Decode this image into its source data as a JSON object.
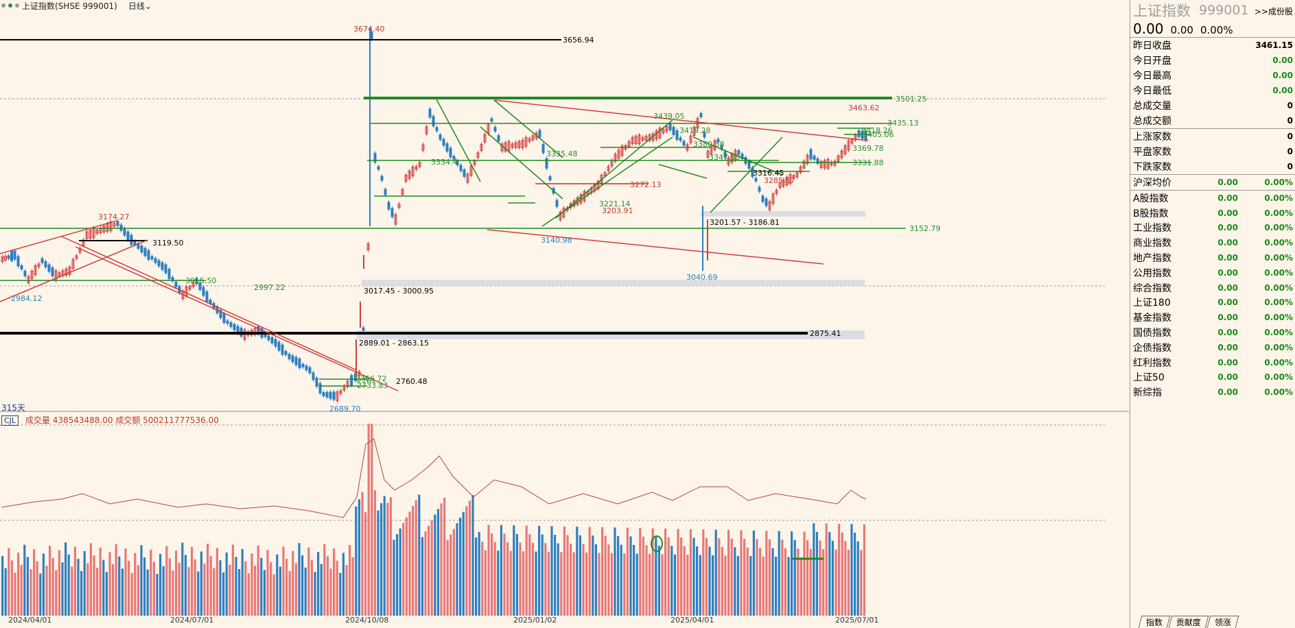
{
  "topbar": {
    "title": "上证指数(SHSE 999001)",
    "period": "日线",
    "dots": [
      "#999999",
      "#2e8b57",
      "#999999"
    ]
  },
  "label_315": "315天",
  "cjl": {
    "box": "CJL",
    "text": "成交量 438543488.00  成交额 500211777536.00"
  },
  "xaxis": [
    "2024/04/01",
    "2024/07/01",
    "2024/10/08",
    "2025/01/02",
    "2025/04/01",
    "2025/07/01"
  ],
  "chart_labels": [
    {
      "t": "3674.40",
      "c": "#c0392b"
    },
    {
      "t": "3656.94",
      "c": "#000"
    },
    {
      "t": "3501.25",
      "c": "#2e8b2e"
    },
    {
      "t": "3463.62",
      "c": "#c0392b"
    },
    {
      "t": "3435.13",
      "c": "#2e8b2e"
    },
    {
      "t": "3418.26",
      "c": "#2e8b2e"
    },
    {
      "t": "3405.06",
      "c": "#2e8b2e"
    },
    {
      "t": "3439.05",
      "c": "#2e8b2e"
    },
    {
      "t": "3419.28",
      "c": "#2e8b2e"
    },
    {
      "t": "3380.58",
      "c": "#2e8b2e"
    },
    {
      "t": "3369.78",
      "c": "#2e8b2e"
    },
    {
      "t": "3347.93",
      "c": "#2e8b2e"
    },
    {
      "t": "3335.48",
      "c": "#2e8b2e"
    },
    {
      "t": "3331.88",
      "c": "#2e8b2e"
    },
    {
      "t": "3334.4",
      "c": "#2e8b2e"
    },
    {
      "t": "3316.45",
      "c": "#000"
    },
    {
      "t": "3272.13",
      "c": "#c0392b"
    },
    {
      "t": "3285.57",
      "c": "#c0392b"
    },
    {
      "t": "3221.14",
      "c": "#2e8b2e"
    },
    {
      "t": "3203.91",
      "c": "#c0392b"
    },
    {
      "t": "3201.57 - 3186.81",
      "c": "#000"
    },
    {
      "t": "3174.27",
      "c": "#c0392b"
    },
    {
      "t": "3152.79",
      "c": "#2e8b2e"
    },
    {
      "t": "3140.98",
      "c": "#2980b9"
    },
    {
      "t": "3119.50",
      "c": "#000"
    },
    {
      "t": "3040.69",
      "c": "#2980b9"
    },
    {
      "t": "3017.45 - 3000.95",
      "c": "#000"
    },
    {
      "t": "3015.50",
      "c": "#2e8b2e"
    },
    {
      "t": "2997.22",
      "c": "#2e8b2e"
    },
    {
      "t": "2984.12",
      "c": "#2980b9"
    },
    {
      "t": "2889.01 - 2863.15",
      "c": "#000"
    },
    {
      "t": "2875.41",
      "c": "#000"
    },
    {
      "t": "2760.48",
      "c": "#000"
    },
    {
      "t": "2756.72",
      "c": "#2e8b2e"
    },
    {
      "t": "2761",
      "c": "#2e8b2e"
    },
    {
      "t": "2733.83",
      "c": "#2e8b2e"
    },
    {
      "t": "2689.70",
      "c": "#2980b9"
    }
  ],
  "panel": {
    "title": "上证指数",
    "code": "999001",
    "link": ">>成份股",
    "quote": [
      "0.00",
      "0.00",
      "0.00%"
    ],
    "stats": [
      {
        "label": "昨日收盘",
        "value": "3461.15",
        "color": "#000"
      },
      {
        "label": "今日开盘",
        "value": "0.00",
        "color": "#1a8a1a"
      },
      {
        "label": "今日最高",
        "value": "0.00",
        "color": "#1a8a1a"
      },
      {
        "label": "今日最低",
        "value": "0.00",
        "color": "#1a8a1a"
      },
      {
        "label": "总成交量",
        "value": "0",
        "color": "#000"
      },
      {
        "label": "总成交额",
        "value": "0",
        "color": "#000"
      }
    ],
    "breadth": [
      {
        "label": "上涨家数",
        "value": "0"
      },
      {
        "label": "平盘家数",
        "value": "0"
      },
      {
        "label": "下跌家数",
        "value": "0"
      }
    ],
    "avg": {
      "label": "沪深均价",
      "v1": "0.00",
      "v2": "0.00%"
    },
    "indices": [
      {
        "label": "A股指数",
        "v1": "0.00",
        "v2": "0.00%"
      },
      {
        "label": "B股指数",
        "v1": "0.00",
        "v2": "0.00%"
      },
      {
        "label": "工业指数",
        "v1": "0.00",
        "v2": "0.00%"
      },
      {
        "label": "商业指数",
        "v1": "0.00",
        "v2": "0.00%"
      },
      {
        "label": "地产指数",
        "v1": "0.00",
        "v2": "0.00%"
      },
      {
        "label": "公用指数",
        "v1": "0.00",
        "v2": "0.00%"
      },
      {
        "label": "综合指数",
        "v1": "0.00",
        "v2": "0.00%"
      },
      {
        "label": "上证180",
        "v1": "0.00",
        "v2": "0.00%"
      },
      {
        "label": "基金指数",
        "v1": "0.00",
        "v2": "0.00%"
      },
      {
        "label": "国债指数",
        "v1": "0.00",
        "v2": "0.00%"
      },
      {
        "label": "企债指数",
        "v1": "0.00",
        "v2": "0.00%"
      },
      {
        "label": "红利指数",
        "v1": "0.00",
        "v2": "0.00%"
      },
      {
        "label": "上证50",
        "v1": "0.00",
        "v2": "0.00%"
      },
      {
        "label": "新综指",
        "v1": "0.00",
        "v2": "0.00%"
      }
    ],
    "tabs": [
      "指数",
      "贡献度",
      "领涨"
    ]
  }
}
